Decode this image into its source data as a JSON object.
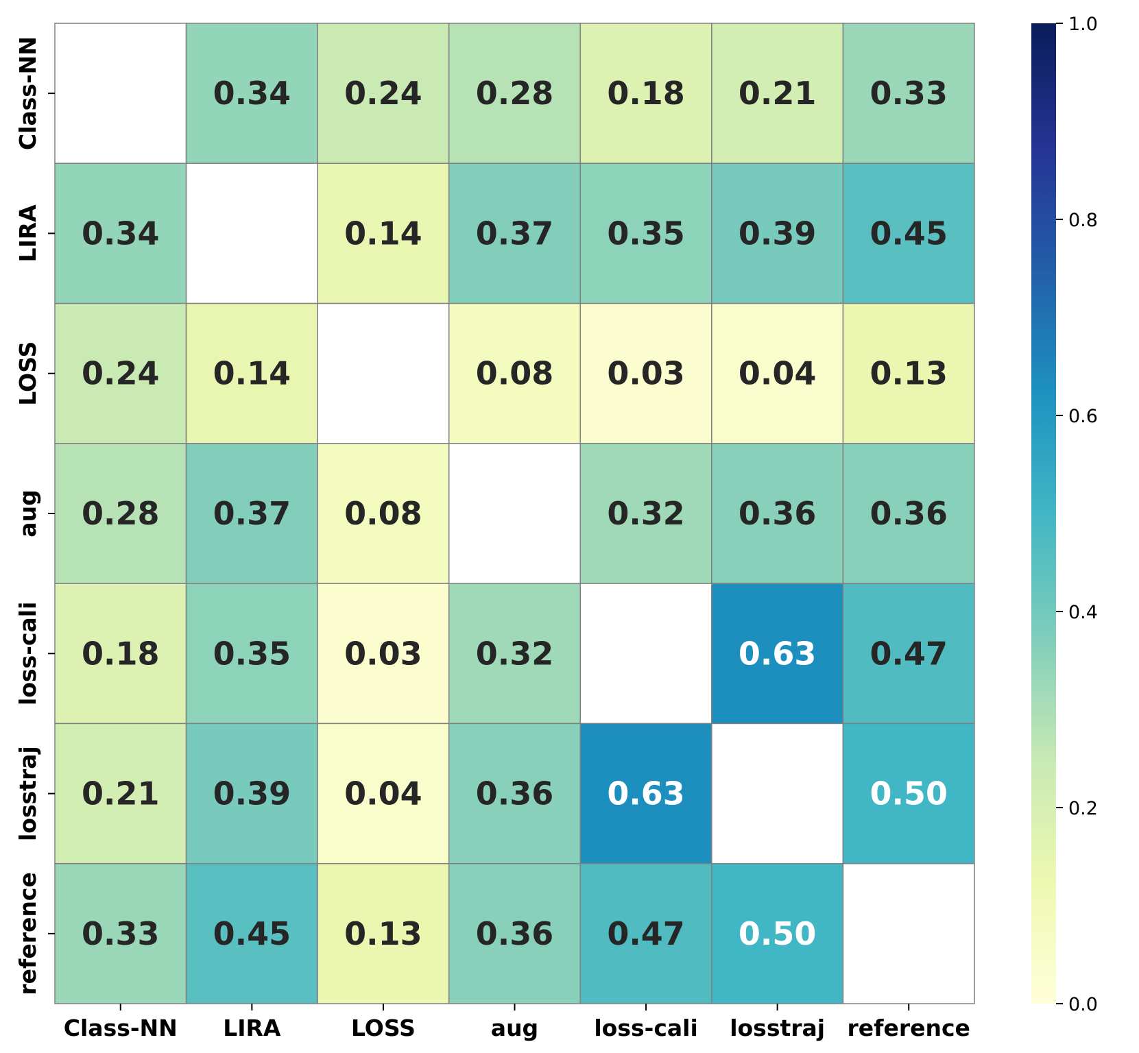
{
  "chart_data": {
    "type": "heatmap",
    "title": "",
    "xlabel": "",
    "ylabel": "",
    "x_labels": [
      "Class-NN",
      "LIRA",
      "LOSS",
      "aug",
      "loss-cali",
      "losstraj",
      "reference"
    ],
    "y_labels": [
      "Class-NN",
      "LIRA",
      "LOSS",
      "aug",
      "loss-cali",
      "losstraj",
      "reference"
    ],
    "values": [
      [
        null,
        0.34,
        0.24,
        0.28,
        0.18,
        0.21,
        0.33
      ],
      [
        0.34,
        null,
        0.14,
        0.37,
        0.35,
        0.39,
        0.45
      ],
      [
        0.24,
        0.14,
        null,
        0.08,
        0.03,
        0.04,
        0.13
      ],
      [
        0.28,
        0.37,
        0.08,
        null,
        0.32,
        0.36,
        0.36
      ],
      [
        0.18,
        0.35,
        0.03,
        0.32,
        null,
        0.63,
        0.47
      ],
      [
        0.21,
        0.39,
        0.04,
        0.36,
        0.63,
        null,
        0.5
      ],
      [
        0.33,
        0.45,
        0.13,
        0.36,
        0.47,
        0.5,
        null
      ]
    ],
    "value_format": "0.00",
    "diagonal": "blank",
    "colormap": "YlGnBu",
    "colorbar": {
      "range": [
        0.0,
        1.0
      ],
      "ticks": [
        0.0,
        0.2,
        0.4,
        0.6,
        0.8,
        1.0
      ],
      "tick_labels": [
        "0.0",
        "0.2",
        "0.4",
        "0.6",
        "0.8",
        "1.0"
      ],
      "placement": "right"
    },
    "colors": {
      "gridline": "#808080",
      "label_dark": "#262626",
      "label_light": "#ffffff",
      "colormap_stops": [
        "#ffffd9",
        "#edf8b1",
        "#c7e9b4",
        "#7fcdbb",
        "#41b6c4",
        "#1d91c0",
        "#225ea8",
        "#253494",
        "#081d58"
      ]
    }
  }
}
